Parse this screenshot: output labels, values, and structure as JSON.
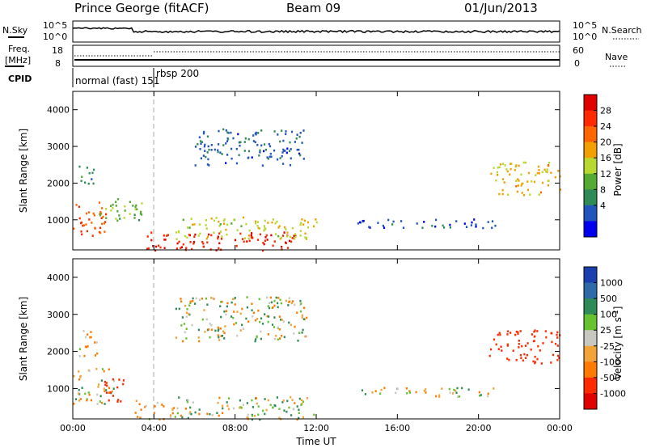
{
  "header": {
    "station": "Prince George (fitACF)",
    "beam": "Beam 09",
    "date": "01/Jun/2013"
  },
  "panels": {
    "nsky": {
      "label": "N.Sky",
      "left_ticks": [
        "10^5",
        "10^0"
      ],
      "right_ticks": [
        "10^5",
        "10^0"
      ],
      "right_label": "N.Search"
    },
    "freq": {
      "label_line1": "Freq.",
      "label_line2": "[MHz]",
      "left_ticks": [
        "18",
        "8"
      ],
      "right_ticks": [
        "60",
        "0"
      ],
      "right_label": "Nave"
    },
    "cpid": {
      "label": "CPID",
      "segments": [
        "normal (fast) 151",
        "rbsp 200"
      ]
    }
  },
  "axes": {
    "ylabel": "Slant Range [km]",
    "yticks": [
      "1000",
      "2000",
      "3000",
      "4000"
    ],
    "xlabel": "Time UT",
    "xticks": [
      "00:00",
      "04:00",
      "08:00",
      "12:00",
      "16:00",
      "20:00",
      "00:00"
    ]
  },
  "colorbars": {
    "power": {
      "label": "Power [dB]",
      "ticks": [
        "4",
        "8",
        "12",
        "16",
        "20",
        "24",
        "28"
      ],
      "colors": [
        "#0000ee",
        "#2255bb",
        "#2e8b57",
        "#55aa33",
        "#b8d830",
        "#f2a000",
        "#ff6600",
        "#ff2a00",
        "#e00000"
      ]
    },
    "velocity": {
      "label": "Velocity [m s^-1]",
      "ticks": [
        "1000",
        "500",
        "100",
        "25",
        "-25",
        "-100",
        "-500",
        "-1000"
      ],
      "colors": [
        "#1c3fb0",
        "#2e6aa8",
        "#2e8b57",
        "#66c22e",
        "#c8c8c0",
        "#f2a33a",
        "#ff7a00",
        "#ff2a00",
        "#e00000"
      ]
    }
  },
  "chart_data": [
    {
      "type": "heatmap",
      "title": "Prince George (fitACF) Beam 09 01/Jun/2013",
      "xlabel": "Time UT",
      "ylabel": "Slant Range [km]",
      "xlim": [
        "00:00",
        "24:00"
      ],
      "ylim": [
        180,
        4500
      ],
      "colorbar": "Power [dB]",
      "clim": [
        0,
        31
      ],
      "regions": [
        {
          "t": [
            0.0,
            1.6
          ],
          "r": [
            500,
            1500
          ],
          "value": 24
        },
        {
          "t": [
            1.3,
            3.8
          ],
          "r": [
            1000,
            1600
          ],
          "value": 12
        },
        {
          "t": [
            0.0,
            1.0
          ],
          "r": [
            2000,
            2500
          ],
          "value": 8
        },
        {
          "t": [
            3.6,
            11.0
          ],
          "r": [
            180,
            700
          ],
          "value": 27
        },
        {
          "t": [
            5.0,
            12.0
          ],
          "r": [
            500,
            1100
          ],
          "value": 16
        },
        {
          "t": [
            6.0,
            11.5
          ],
          "r": [
            2500,
            3500
          ],
          "value": 6
        },
        {
          "t": [
            14.0,
            21.0
          ],
          "r": [
            800,
            1050
          ],
          "value": 5
        },
        {
          "t": [
            20.5,
            24.0
          ],
          "r": [
            1700,
            2600
          ],
          "value": 18
        }
      ]
    },
    {
      "type": "heatmap",
      "title": "",
      "xlabel": "Time UT",
      "ylabel": "Slant Range [km]",
      "xlim": [
        "00:00",
        "24:00"
      ],
      "ylim": [
        180,
        4500
      ],
      "colorbar": "Velocity [m s^-1]",
      "clim": [
        -1100,
        1100
      ],
      "regions": [
        {
          "t": [
            0.0,
            2.0
          ],
          "r": [
            600,
            1600
          ],
          "value": 0
        },
        {
          "t": [
            1.5,
            2.5
          ],
          "r": [
            600,
            1300
          ],
          "value": -800
        },
        {
          "t": [
            0.2,
            1.2
          ],
          "r": [
            1900,
            2600
          ],
          "value": -150
        },
        {
          "t": [
            3.0,
            5.0
          ],
          "r": [
            180,
            700
          ],
          "value": -150
        },
        {
          "t": [
            5.0,
            12.0
          ],
          "r": [
            180,
            800
          ],
          "value": 60
        },
        {
          "t": [
            5.0,
            11.5
          ],
          "r": [
            2300,
            3500
          ],
          "value": 0
        },
        {
          "t": [
            14.0,
            21.0
          ],
          "r": [
            800,
            1050
          ],
          "value": 0
        },
        {
          "t": [
            20.5,
            24.0
          ],
          "r": [
            1700,
            2600
          ],
          "value": -700
        }
      ]
    }
  ]
}
